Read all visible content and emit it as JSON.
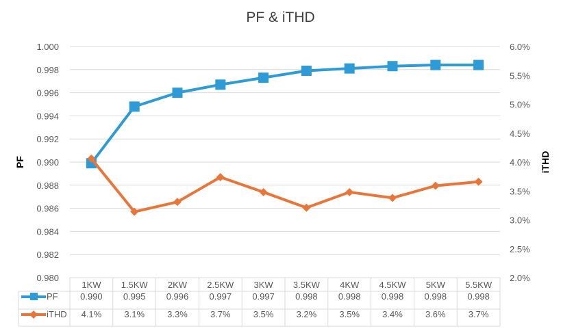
{
  "chart_data": {
    "type": "line",
    "title": "PF & iTHD",
    "categories": [
      "1KW",
      "1.5KW",
      "2KW",
      "2.5KW",
      "3KW",
      "3.5KW",
      "4KW",
      "4.5KW",
      "5KW",
      "5.5KW"
    ],
    "ylabel_left": "PF",
    "ylabel_right": "iTHD",
    "ylim_left": [
      0.98,
      1.0
    ],
    "ylim_right": [
      0.02,
      0.06
    ],
    "yticks_left": [
      "1.000",
      "0.998",
      "0.996",
      "0.994",
      "0.992",
      "0.990",
      "0.988",
      "0.986",
      "0.984",
      "0.982",
      "0.980"
    ],
    "yticks_right": [
      "6.0%",
      "5.5%",
      "5.0%",
      "4.5%",
      "4.0%",
      "3.5%",
      "3.0%",
      "2.5%",
      "2.0%"
    ],
    "grid": true,
    "legend": "data table",
    "series": [
      {
        "name": "PF",
        "axis": "left",
        "color": "#2E9BD6",
        "marker": "square",
        "values": [
          0.9899,
          0.9948,
          0.996,
          0.9967,
          0.9973,
          0.9979,
          0.9981,
          0.9983,
          0.9984,
          0.9984
        ],
        "table_labels": [
          "0.990",
          "0.995",
          "0.996",
          "0.997",
          "0.997",
          "0.998",
          "0.998",
          "0.998",
          "0.998",
          "0.998"
        ]
      },
      {
        "name": "iTHD",
        "axis": "right",
        "color": "#E8763A",
        "marker": "diamond",
        "values": [
          0.0406,
          0.0314,
          0.0331,
          0.0374,
          0.0348,
          0.0321,
          0.0348,
          0.0338,
          0.0359,
          0.0366
        ],
        "table_labels": [
          "4.1%",
          "3.1%",
          "3.3%",
          "3.7%",
          "3.5%",
          "3.2%",
          "3.5%",
          "3.4%",
          "3.6%",
          "3.7%"
        ]
      }
    ]
  }
}
